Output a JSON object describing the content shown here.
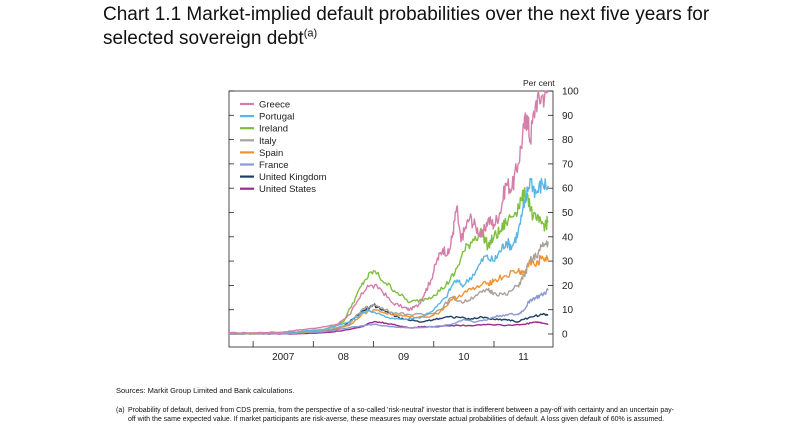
{
  "title": "Chart 1.1  Market-implied default probabilities over the next five years for selected sovereign debt",
  "title_note": "(a)",
  "sources": "Sources:  Markit Group Limited and Bank calculations.",
  "footnote": {
    "marker": "(a)",
    "text": "Probability of default, derived from CDS premia, from the perspective of a so-called 'risk-neutral' investor that is indifferent between a pay-off  with certainty and an uncertain pay-off with the same expected value.  If market participants are risk-averse, these measures may overstate actual probabilities of default. A loss given default of 60% is assumed."
  },
  "chart_data": {
    "type": "line",
    "ylabel": "Per cent",
    "ylim": [
      0,
      100
    ],
    "yticks": [
      0,
      10,
      20,
      30,
      40,
      50,
      60,
      70,
      80,
      90,
      100
    ],
    "xlim": [
      2006.6,
      2011.98
    ],
    "xticks": [
      {
        "label": "2007",
        "start": 2007,
        "end": 2008
      },
      {
        "label": "08",
        "start": 2008,
        "end": 2009
      },
      {
        "label": "09",
        "start": 2009,
        "end": 2010
      },
      {
        "label": "10",
        "start": 2010,
        "end": 2011
      },
      {
        "label": "11",
        "start": 2011,
        "end": 2011.98
      }
    ],
    "legend_position": "top-left",
    "grid": false,
    "series": [
      {
        "name": "Greece",
        "color": "#d47fa9",
        "x": [
          2006.6,
          2007.0,
          2007.5,
          2007.7,
          2007.9,
          2008.2,
          2008.4,
          2008.6,
          2008.7,
          2008.9,
          2009.1,
          2009.3,
          2009.5,
          2009.6,
          2009.75,
          2009.85,
          2009.95,
          2010.05,
          2010.15,
          2010.25,
          2010.32,
          2010.38,
          2010.45,
          2010.5,
          2010.6,
          2010.7,
          2010.8,
          2010.9,
          2011.0,
          2011.1,
          2011.2,
          2011.3,
          2011.4,
          2011.5,
          2011.55,
          2011.6,
          2011.7,
          2011.8,
          2011.9
        ],
        "y": [
          0.5,
          0.5,
          0.8,
          1.5,
          2,
          3,
          4,
          8,
          12,
          20,
          19,
          13,
          11,
          10,
          12,
          17,
          22,
          30,
          35,
          33,
          42,
          52,
          38,
          42,
          48,
          44,
          40,
          47,
          45,
          50,
          62,
          60,
          70,
          85,
          90,
          80,
          96,
          98,
          100
        ]
      },
      {
        "name": "Portugal",
        "color": "#5ab5e6",
        "x": [
          2006.6,
          2007.0,
          2007.7,
          2008.2,
          2008.6,
          2008.9,
          2009.2,
          2009.5,
          2009.8,
          2010.0,
          2010.2,
          2010.35,
          2010.5,
          2010.7,
          2010.85,
          2011.0,
          2011.1,
          2011.2,
          2011.3,
          2011.4,
          2011.5,
          2011.6,
          2011.7,
          2011.8,
          2011.9
        ],
        "y": [
          0.3,
          0.3,
          0.8,
          2,
          5,
          10,
          7,
          6,
          7,
          10,
          15,
          22,
          20,
          26,
          32,
          30,
          34,
          38,
          36,
          42,
          52,
          64,
          58,
          62,
          61
        ]
      },
      {
        "name": "Ireland",
        "color": "#7fbf3f",
        "x": [
          2006.6,
          2007.0,
          2007.7,
          2008.2,
          2008.5,
          2008.7,
          2008.85,
          2009.0,
          2009.2,
          2009.4,
          2009.6,
          2009.8,
          2010.0,
          2010.2,
          2010.35,
          2010.5,
          2010.65,
          2010.8,
          2010.9,
          2011.0,
          2011.1,
          2011.2,
          2011.35,
          2011.45,
          2011.55,
          2011.65,
          2011.75,
          2011.85,
          2011.9
        ],
        "y": [
          0.2,
          0.2,
          0.6,
          2,
          5,
          15,
          22,
          26,
          21,
          17,
          13,
          14,
          16,
          20,
          25,
          34,
          39,
          42,
          36,
          40,
          42,
          46,
          50,
          55,
          58,
          48,
          46,
          45,
          46
        ]
      },
      {
        "name": "Italy",
        "color": "#a9a29a",
        "x": [
          2006.6,
          2007.0,
          2007.7,
          2008.2,
          2008.6,
          2008.8,
          2009.0,
          2009.3,
          2009.6,
          2009.9,
          2010.1,
          2010.3,
          2010.5,
          2010.7,
          2010.9,
          2011.0,
          2011.2,
          2011.4,
          2011.5,
          2011.6,
          2011.7,
          2011.8,
          2011.9
        ],
        "y": [
          0.2,
          0.2,
          0.5,
          1.5,
          4,
          10,
          12,
          9,
          8,
          8,
          10,
          15,
          13,
          16,
          18,
          17,
          16,
          20,
          24,
          30,
          32,
          36,
          38
        ]
      },
      {
        "name": "Spain",
        "color": "#f0922f",
        "x": [
          2006.6,
          2007.0,
          2007.7,
          2008.2,
          2008.6,
          2008.8,
          2009.0,
          2009.3,
          2009.6,
          2009.9,
          2010.1,
          2010.3,
          2010.5,
          2010.7,
          2010.9,
          2011.0,
          2011.2,
          2011.4,
          2011.5,
          2011.6,
          2011.7,
          2011.8,
          2011.9
        ],
        "y": [
          0.2,
          0.2,
          0.4,
          1.5,
          3.5,
          8,
          10,
          8,
          7,
          7,
          9,
          14,
          17,
          19,
          21,
          22,
          24,
          26,
          25,
          30,
          28,
          32,
          30
        ]
      },
      {
        "name": "France",
        "color": "#8a9ad0",
        "x": [
          2006.6,
          2007.0,
          2007.7,
          2008.2,
          2008.7,
          2009.0,
          2009.3,
          2009.6,
          2010.0,
          2010.3,
          2010.5,
          2010.7,
          2010.9,
          2011.0,
          2011.2,
          2011.4,
          2011.5,
          2011.6,
          2011.7,
          2011.8,
          2011.9
        ],
        "y": [
          0.1,
          0.1,
          0.3,
          1,
          3,
          4,
          3,
          2.5,
          3,
          4,
          6,
          5,
          6,
          7,
          8,
          8,
          10,
          14,
          15,
          16,
          18
        ]
      },
      {
        "name": "United Kingdom",
        "color": "#1e3f66",
        "x": [
          2006.6,
          2007.0,
          2007.7,
          2008.2,
          2008.5,
          2008.7,
          2008.8,
          2009.0,
          2009.15,
          2009.3,
          2009.5,
          2009.8,
          2010.0,
          2010.2,
          2010.4,
          2010.6,
          2010.8,
          2011.0,
          2011.2,
          2011.4,
          2011.6,
          2011.8,
          2011.9
        ],
        "y": [
          0.1,
          0.1,
          0.3,
          1,
          3,
          7,
          9,
          12,
          10,
          8,
          6,
          5,
          6,
          7,
          7,
          6,
          7,
          6,
          6,
          5,
          7,
          8,
          8
        ]
      },
      {
        "name": "United States",
        "color": "#9a2b8c",
        "x": [
          2006.6,
          2007.0,
          2007.7,
          2008.2,
          2008.5,
          2008.8,
          2009.0,
          2009.2,
          2009.4,
          2009.6,
          2009.8,
          2010.0,
          2010.3,
          2010.6,
          2010.9,
          2011.2,
          2011.5,
          2011.7,
          2011.8,
          2011.9
        ],
        "y": [
          0.05,
          0.05,
          0.1,
          0.6,
          1.5,
          3,
          5,
          4.5,
          3.5,
          2.5,
          3,
          3,
          3.5,
          3.5,
          4,
          3.5,
          4,
          5,
          4.5,
          4
        ]
      }
    ]
  }
}
